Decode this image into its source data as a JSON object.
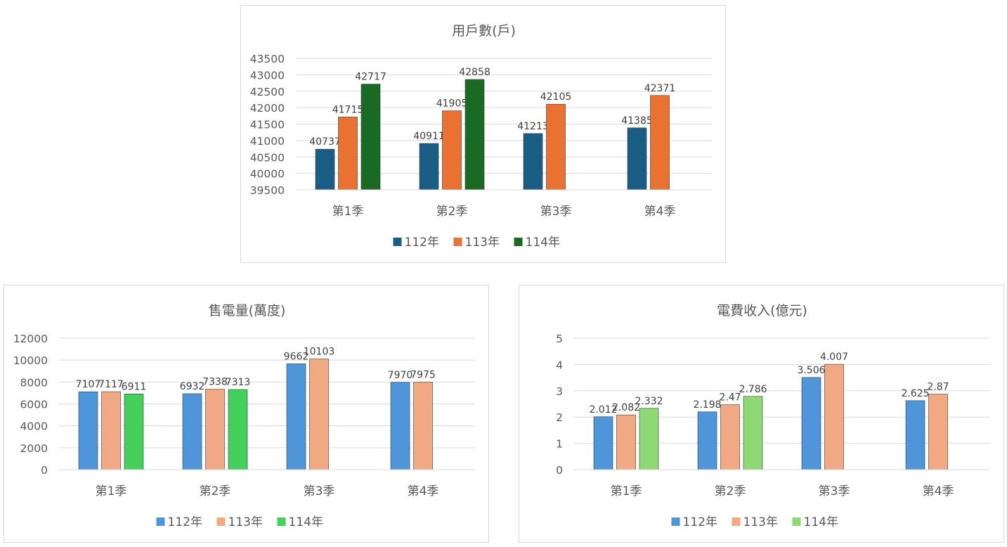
{
  "chart_data": [
    {
      "type": "bar",
      "title": "用戶數(戶)",
      "categories": [
        "第1季",
        "第2季",
        "第3季",
        "第4季"
      ],
      "yticks": [
        "39500",
        "40000",
        "40500",
        "41000",
        "41500",
        "42000",
        "42500",
        "43000",
        "43500"
      ],
      "ylim": [
        39500,
        43500
      ],
      "grid": true,
      "legend_position": "bottom",
      "series": [
        {
          "name": "112年",
          "color": "#1a5e85",
          "values": [
            40737,
            40911,
            41213,
            41385
          ],
          "labels": [
            "40737",
            "40911",
            "41213",
            "41385"
          ]
        },
        {
          "name": "113年",
          "color": "#e97132",
          "values": [
            41715,
            41905,
            42105,
            42371
          ],
          "labels": [
            "41715",
            "41905",
            "42105",
            "42371"
          ]
        },
        {
          "name": "114年",
          "color": "#196b24",
          "values": [
            42717,
            42858,
            null,
            null
          ],
          "labels": [
            "42717",
            "42858",
            null,
            null
          ]
        }
      ]
    },
    {
      "type": "bar",
      "title": "售電量(萬度)",
      "categories": [
        "第1季",
        "第2季",
        "第3季",
        "第4季"
      ],
      "yticks": [
        "0",
        "2000",
        "4000",
        "6000",
        "8000",
        "10000",
        "12000"
      ],
      "ylim": [
        0,
        12000
      ],
      "grid": true,
      "legend_position": "bottom",
      "series": [
        {
          "name": "112年",
          "color": "#4e95d9",
          "values": [
            7107,
            6932,
            9662,
            7970
          ],
          "labels": [
            "7107",
            "6932",
            "9662",
            "7970"
          ]
        },
        {
          "name": "113年",
          "color": "#f1a983",
          "values": [
            7117,
            7338,
            10103,
            7975
          ],
          "labels": [
            "7117",
            "7338",
            "10103",
            "7975"
          ]
        },
        {
          "name": "114年",
          "color": "#44d05a",
          "values": [
            6911,
            7313,
            null,
            null
          ],
          "labels": [
            "6911",
            "7313",
            null,
            null
          ]
        }
      ]
    },
    {
      "type": "bar",
      "title": "電費收入(億元)",
      "categories": [
        "第1季",
        "第2季",
        "第3季",
        "第4季"
      ],
      "yticks": [
        "0",
        "1",
        "2",
        "3",
        "4",
        "5"
      ],
      "ylim": [
        0,
        5
      ],
      "grid": true,
      "legend_position": "bottom",
      "series": [
        {
          "name": "112年",
          "color": "#4e95d9",
          "values": [
            2.012,
            2.198,
            3.506,
            2.625
          ],
          "labels": [
            "2.012",
            "2.198",
            "3.506",
            "2.625"
          ]
        },
        {
          "name": "113年",
          "color": "#f1a983",
          "values": [
            2.082,
            2.47,
            4.007,
            2.87
          ],
          "labels": [
            "2.082",
            "2.47",
            "4.007",
            "2.87"
          ]
        },
        {
          "name": "114年",
          "color": "#8ed973",
          "values": [
            2.332,
            2.786,
            null,
            null
          ],
          "labels": [
            "2.332",
            "2.786",
            null,
            null
          ]
        }
      ]
    }
  ]
}
